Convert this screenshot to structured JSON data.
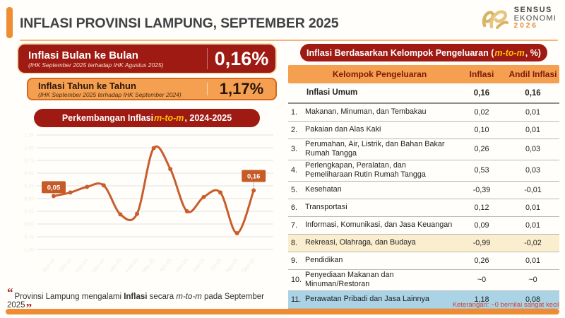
{
  "header": {
    "title": "INFLASI PROVINSI LAMPUNG, SEPTEMBER 2025",
    "logo": {
      "line1": "SENSUS",
      "line2": "EKONOMI",
      "line3": "2026"
    }
  },
  "kpi_boxes": [
    {
      "title": "Inflasi Bulan ke Bulan",
      "subtitle": "(IHK September 2025 terhadap IHK Agustus 2025)",
      "value": "0,16%"
    },
    {
      "title": "Inflasi Tahun ke Tahun",
      "subtitle": "(IHK September 2025 terhadap IHK September 2024)",
      "value": "1,17%"
    }
  ],
  "chart_banner": {
    "prefix": "Perkembangan Inflasi ",
    "highlight": "m-to-m",
    "suffix": ", 2024-2025"
  },
  "chart_data": {
    "type": "line",
    "title": "Perkembangan Inflasi m-to-m, 2024-2025",
    "categories": [
      "Sep-24",
      "Okt-24",
      "Nov-24",
      "Des-24",
      "Jan-25",
      "Feb-25",
      "Mar-25",
      "Apr-25",
      "Mei-25",
      "Jun-25",
      "Jul-25",
      "Agu-25",
      "Sep-25"
    ],
    "values": [
      0.05,
      0.12,
      0.23,
      0.26,
      -0.31,
      -0.3,
      0.99,
      0.58,
      -0.25,
      0.03,
      0.12,
      -0.68,
      0.16
    ],
    "point_labels": {
      "0": "0,05",
      "12": "0,16"
    },
    "xlabel": "",
    "ylabel": "",
    "ylim": [
      -1.0,
      1.25
    ],
    "grid_step": 0.25,
    "grid": true,
    "legend": "none",
    "line_color": "#c95d2b",
    "label_box_color": "#c75b28",
    "grid_color": "#e6e3de",
    "tick_label_color": "#f3ecdb"
  },
  "quote": {
    "open": "“",
    "p1": "Provinsi Lampung mengalami ",
    "bold": "Inflasi",
    "p2": " secara ",
    "italic": "m-to-m",
    "p3": " pada September 2025",
    "close": "”"
  },
  "table_panel": {
    "banner": {
      "prefix": "Inflasi Berdasarkan Kelompok Pengeluaran (",
      "highlight": "m-to-m",
      "suffix": ", %)"
    },
    "columns": [
      "Kelompok Pengeluaran",
      "Inflasi",
      "Andil Inflasi"
    ],
    "summary_row": {
      "label": "Inflasi Umum",
      "inflasi": "0,16",
      "andil": "0,16"
    },
    "rows": [
      {
        "no": "1.",
        "label": "Makanan, Minuman, dan Tembakau",
        "inflasi": "0,02",
        "andil": "0,01",
        "highlight": ""
      },
      {
        "no": "2.",
        "label": "Pakaian dan Alas Kaki",
        "inflasi": "0,10",
        "andil": "0,01",
        "highlight": ""
      },
      {
        "no": "3.",
        "label": "Perumahan, Air, Listrik, dan Bahan Bakar Rumah Tangga",
        "inflasi": "0,26",
        "andil": "0,03",
        "highlight": ""
      },
      {
        "no": "4.",
        "label": "Perlengkapan, Peralatan, dan Pemeliharaan Rutin Rumah Tangga",
        "inflasi": "0,53",
        "andil": "0,03",
        "highlight": ""
      },
      {
        "no": "5.",
        "label": "Kesehatan",
        "inflasi": "-0,39",
        "andil": "-0,01",
        "highlight": ""
      },
      {
        "no": "6.",
        "label": "Transportasi",
        "inflasi": "0,12",
        "andil": "0,01",
        "highlight": ""
      },
      {
        "no": "7.",
        "label": "Informasi, Komunikasi, dan Jasa Keuangan",
        "inflasi": "0,09",
        "andil": "0,01",
        "highlight": ""
      },
      {
        "no": "8.",
        "label": "Rekreasi, Olahraga, dan Budaya",
        "inflasi": "-0,99",
        "andil": "-0,02",
        "highlight": "cream"
      },
      {
        "no": "9.",
        "label": "Pendidikan",
        "inflasi": "0,26",
        "andil": "0,01",
        "highlight": ""
      },
      {
        "no": "10.",
        "label": "Penyediaan Makanan dan Minuman/Restoran",
        "inflasi": "~0",
        "andil": "~0",
        "highlight": ""
      },
      {
        "no": "11.",
        "label": "Perawatan Pribadi dan Jasa Lainnya",
        "inflasi": "1,18",
        "andil": "0,08",
        "highlight": "blue"
      }
    ],
    "footnote": "Keterangan: ~0 bernilai sangat kecil"
  },
  "colors": {
    "maroon": "#9e1a12",
    "orange_box": "#f5a050",
    "accent_orange": "#ef8d35",
    "chart_line": "#c95d2b",
    "highlight_yellow": "#ffc000",
    "cream_row": "#faeecf",
    "blue_row": "#aad3e6",
    "note_red": "#d6402c",
    "logo_gold": "#d9b465"
  }
}
